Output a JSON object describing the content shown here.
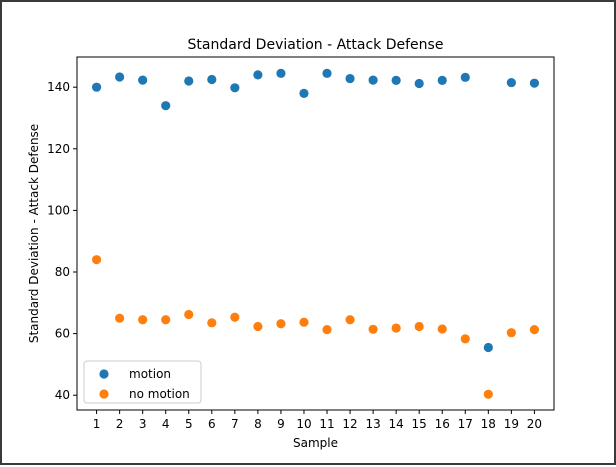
{
  "chart_data": {
    "type": "scatter",
    "title": "Standard Deviation - Attack Defense",
    "xlabel": "Sample",
    "ylabel": "Standard Deviation - Attack Defense",
    "x": [
      1,
      2,
      3,
      4,
      5,
      6,
      7,
      8,
      9,
      10,
      11,
      12,
      13,
      14,
      15,
      16,
      17,
      18,
      19,
      20
    ],
    "xticks": [
      "1",
      "2",
      "3",
      "4",
      "5",
      "6",
      "7",
      "8",
      "9",
      "10",
      "11",
      "12",
      "13",
      "14",
      "15",
      "16",
      "17",
      "18",
      "19",
      "20"
    ],
    "yticks": [
      40,
      60,
      80,
      100,
      120,
      140
    ],
    "xlim": [
      0.15,
      20.85
    ],
    "ylim": [
      35.2,
      149.8
    ],
    "grid": false,
    "legend_position": "lower-left",
    "series": [
      {
        "name": "motion",
        "color": "#1f77b4",
        "values": [
          140.0,
          143.3,
          142.3,
          134.0,
          142.0,
          142.5,
          139.8,
          144.0,
          144.5,
          138.0,
          144.5,
          142.8,
          142.3,
          142.2,
          141.2,
          142.2,
          143.2,
          55.5,
          141.5,
          141.3
        ]
      },
      {
        "name": "no motion",
        "color": "#ff7f0e",
        "values": [
          84.0,
          65.0,
          64.5,
          64.5,
          66.2,
          63.5,
          65.3,
          62.3,
          63.2,
          63.7,
          61.3,
          64.5,
          61.4,
          61.8,
          62.3,
          61.5,
          58.3,
          40.3,
          60.3,
          61.3
        ]
      }
    ]
  }
}
